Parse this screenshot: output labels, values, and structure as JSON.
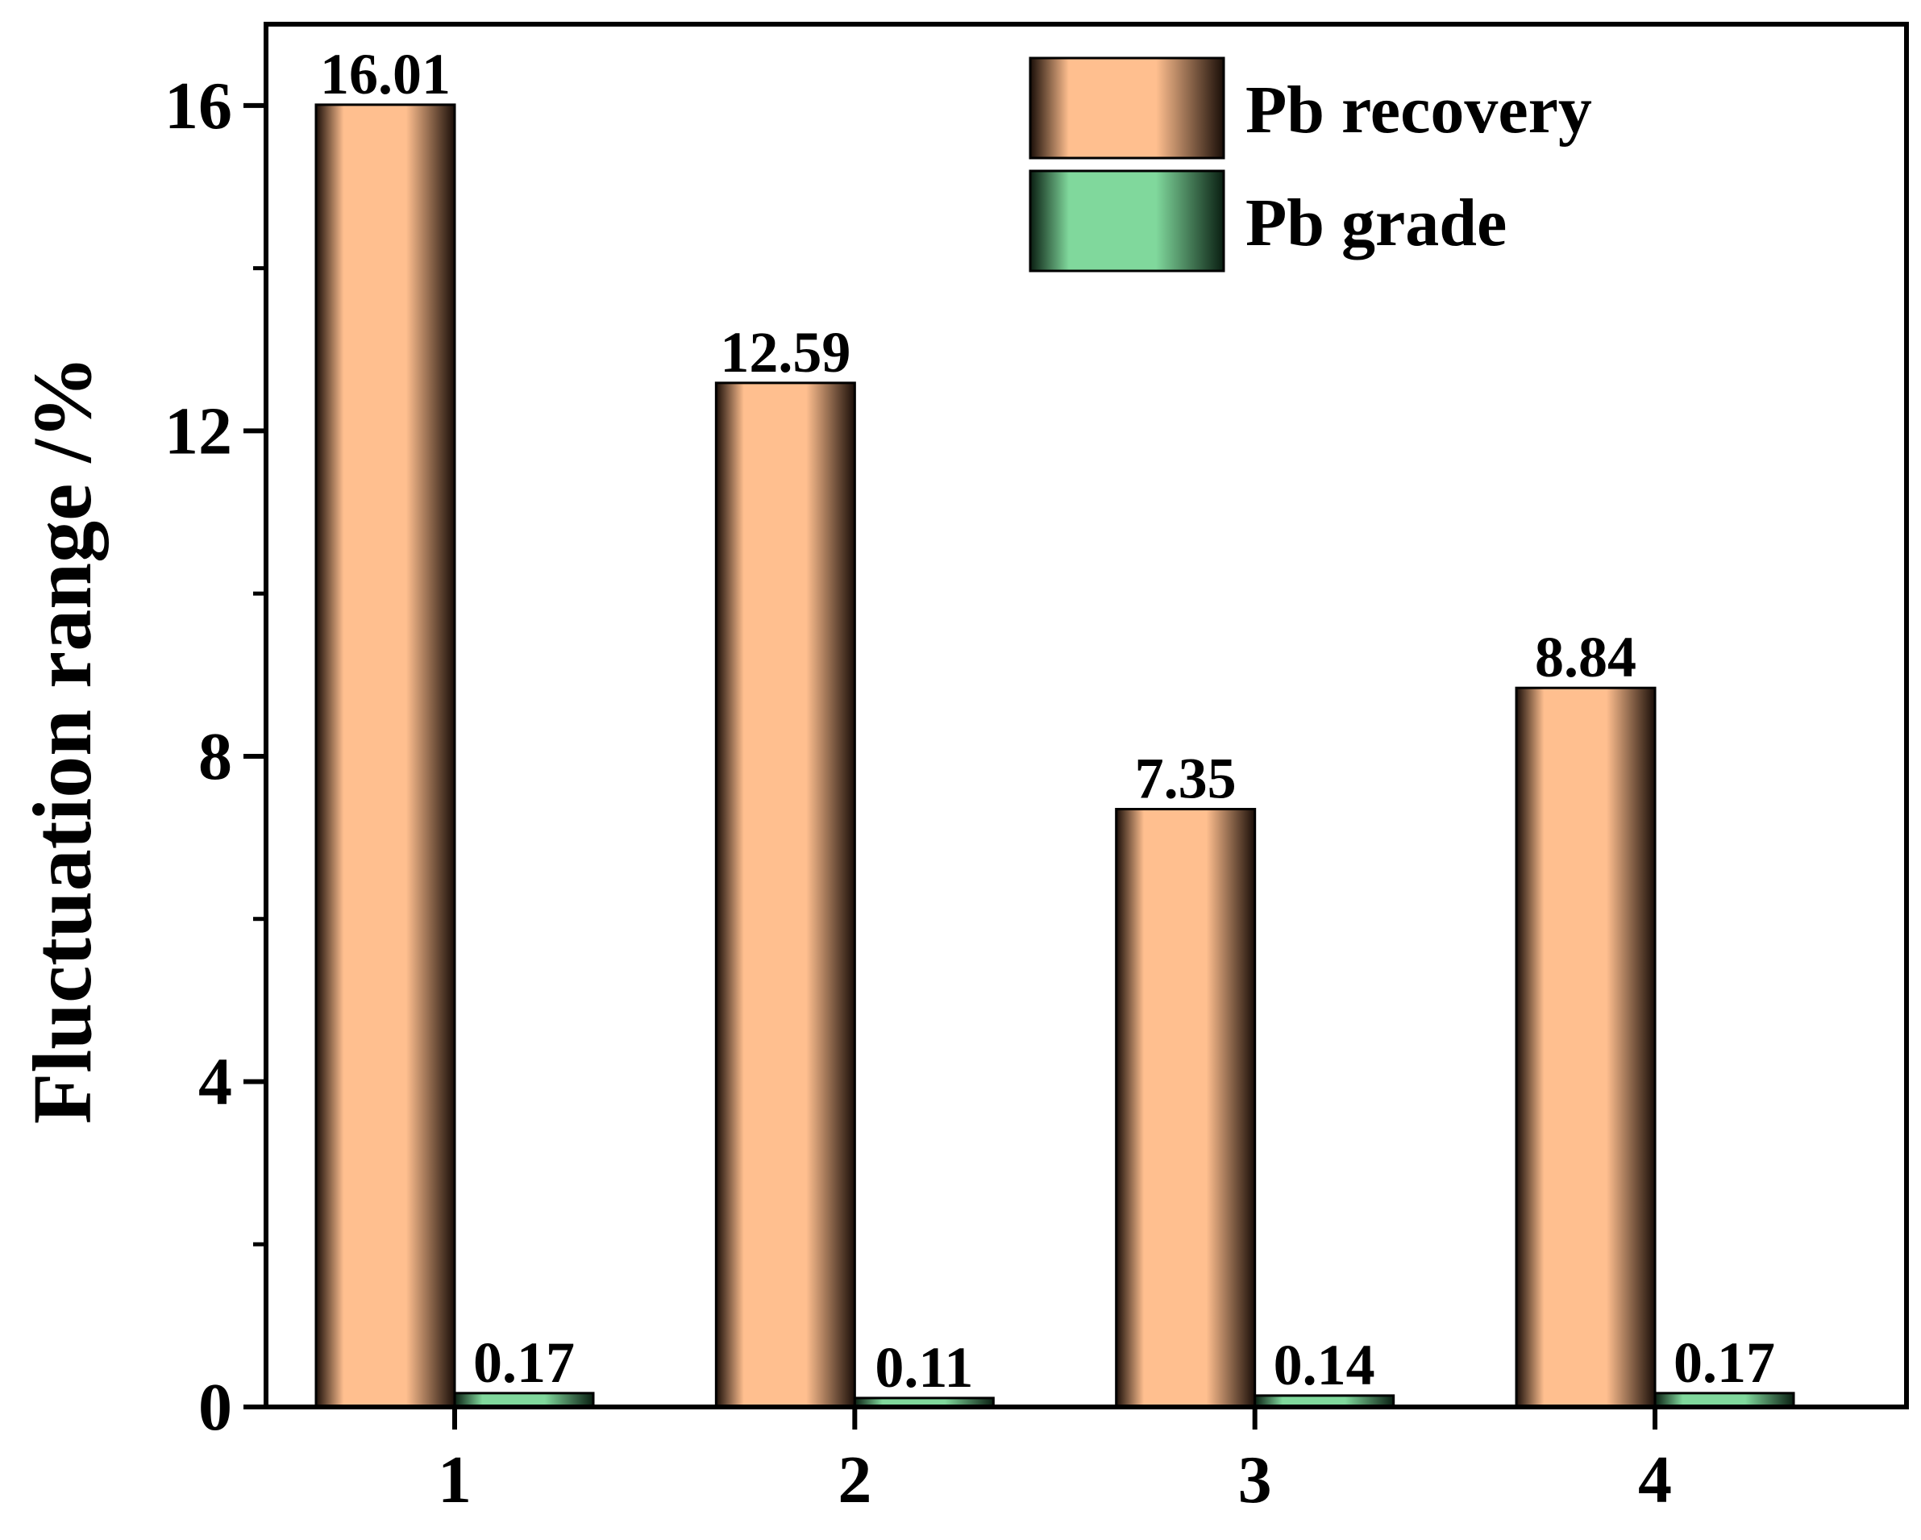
{
  "chart_data": {
    "type": "bar",
    "title": "",
    "xlabel": "",
    "ylabel": "Fluctuation range /%",
    "categories": [
      "1",
      "2",
      "3",
      "4"
    ],
    "series": [
      {
        "name": "Pb recovery",
        "values": [
          16.01,
          12.59,
          7.35,
          8.84
        ],
        "labels": [
          "16.01",
          "12.59",
          "7.35",
          "8.84"
        ],
        "color": "#FFBF8F",
        "edge_color": "#1A0E08"
      },
      {
        "name": "Pb grade",
        "values": [
          0.17,
          0.11,
          0.14,
          0.17
        ],
        "labels": [
          "0.17",
          "0.11",
          "0.14",
          "0.17"
        ],
        "color": "#80D89C",
        "edge_color": "#0A1F12"
      }
    ],
    "ylim": [
      0,
      17
    ],
    "yticks": [
      0,
      4,
      8,
      12,
      16
    ],
    "ytick_labels": [
      "0",
      "4",
      "8",
      "12",
      "16"
    ],
    "grid": false,
    "legend_position": "top-right"
  }
}
